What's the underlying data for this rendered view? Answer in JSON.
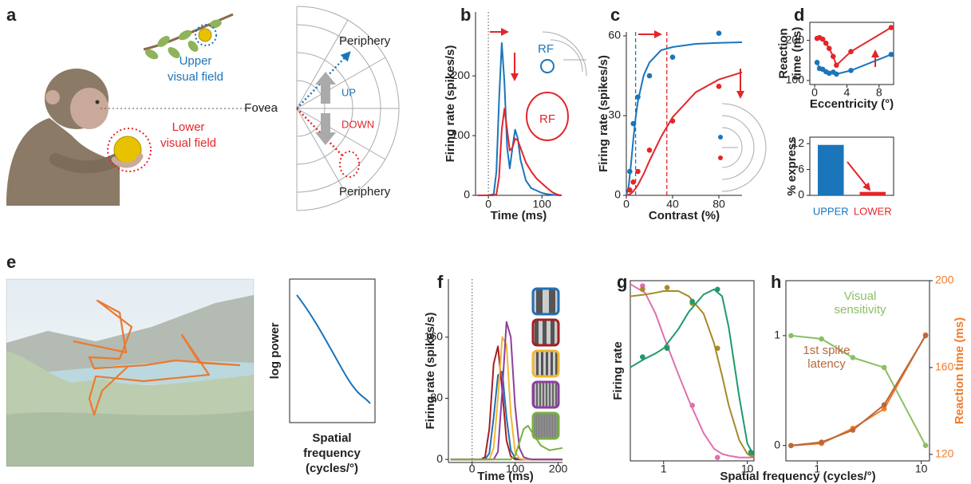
{
  "illustrations": {
    "a": {
      "panel": "a",
      "upper_label": [
        "Upper",
        "visual field"
      ],
      "lower_label": [
        "Lower",
        "visual field"
      ],
      "fovea": "Fovea",
      "periphery_top": "Periphery",
      "periphery_bottom": "Periphery",
      "up": "UP",
      "down": "DOWN"
    },
    "e": {
      "panel": "e",
      "power_y_label": "log power",
      "power_x_label": [
        "Spatial",
        "frequency",
        "(cycles/°)"
      ]
    }
  },
  "chart_data": [
    {
      "type": "line",
      "panel": "b",
      "x_label": "Time (ms)",
      "y_label": "Firing rate (spikes/s)",
      "frame": "L",
      "xlim": [
        -24,
        137
      ],
      "xticks": [
        0,
        100
      ],
      "ylim": [
        0,
        307
      ],
      "yticks": [
        0,
        100,
        200
      ],
      "vlines": [
        {
          "x": 0,
          "color": "#777777",
          "style": "dotted"
        }
      ],
      "x": [
        -20,
        0,
        10,
        15,
        20,
        25,
        30,
        35,
        40,
        45,
        50,
        55,
        60,
        70,
        80,
        90,
        100,
        110,
        120,
        130,
        137
      ],
      "series": [
        {
          "color": "#1b75bb",
          "values": [
            0,
            0,
            2,
            40,
            160,
            255,
            190,
            80,
            45,
            80,
            110,
            95,
            60,
            25,
            12,
            8,
            4,
            2,
            1,
            0,
            0
          ]
        },
        {
          "color": "#e3262a",
          "values": [
            0,
            0,
            0,
            2,
            30,
            110,
            145,
            110,
            75,
            80,
            95,
            92,
            80,
            55,
            40,
            28,
            20,
            12,
            5,
            1,
            0
          ]
        }
      ],
      "annotations": [
        {
          "lines": [
            "RF"
          ],
          "color": "#1b75bb"
        },
        {
          "lines": [
            "RF"
          ],
          "color": "#e3262a"
        }
      ]
    },
    {
      "type": "scatter",
      "panel": "c",
      "x_label": "Contrast (%)",
      "y_label": "Firing rate (spikes/s)",
      "frame": "L",
      "xlim": [
        0,
        100
      ],
      "xticks": [
        0,
        40,
        80
      ],
      "ylim": [
        0,
        61.5
      ],
      "yticks": [
        0,
        30,
        60
      ],
      "vlines": [
        {
          "x": 8,
          "color": "#1b75bb",
          "style": "dashed"
        },
        {
          "x": 35,
          "color": "#e3262a",
          "style": "dashed"
        }
      ],
      "x": [
        3,
        6,
        10,
        20,
        40,
        80
      ],
      "x_fit": [
        0,
        2,
        4,
        6,
        8,
        10,
        15,
        20,
        30,
        40,
        60,
        80,
        100
      ],
      "series": [
        {
          "color": "#1b75bb",
          "values": [
            9,
            27,
            37,
            45,
            52,
            61
          ],
          "fit": [
            0,
            3.4,
            11.6,
            20.9,
            29,
            35.4,
            45.2,
            50,
            54.6,
            55.8,
            57,
            57.4,
            57.6
          ]
        },
        {
          "color": "#e3262a",
          "values": [
            2,
            5,
            9,
            17,
            28,
            41
          ],
          "fit": [
            0,
            0.2,
            0.7,
            1.5,
            2.6,
            3.9,
            8.1,
            13,
            22,
            29.4,
            38.8,
            43.6,
            46.3
          ]
        }
      ]
    },
    {
      "type": "line",
      "panel": "d",
      "x_label": "Eccentricity (°)",
      "y_label": [
        "Reaction",
        "time (ms)"
      ],
      "frame": "box",
      "xlim": [
        -0.6,
        9.8
      ],
      "xticks": [
        0,
        4,
        8
      ],
      "ylim": [
        90,
        245
      ],
      "yticks": [
        100,
        200
      ],
      "x": [
        0.3,
        0.6,
        1,
        1.4,
        1.8,
        2.3,
        2.7,
        4.5,
        9.5
      ],
      "series": [
        {
          "color": "#e3262a",
          "markers": true,
          "values": [
            205,
            207,
            203,
            193,
            180,
            160,
            138,
            172,
            232
          ]
        },
        {
          "color": "#1b75bb",
          "markers": true,
          "values": [
            145,
            130,
            128,
            122,
            118,
            121,
            116,
            125,
            165
          ]
        }
      ]
    },
    {
      "type": "bar",
      "y_label": "% express",
      "frame": "box",
      "categories": [
        "UPPER",
        "LOWER"
      ],
      "values": [
        11.7,
        0.8
      ],
      "colors": [
        "#1b75bb",
        "#e3262a"
      ],
      "ylim": [
        0,
        13.5
      ],
      "yticks": [
        0,
        6,
        12
      ]
    },
    {
      "type": "line",
      "panel": "f",
      "x_label": "Time (ms)",
      "y_label": "Firing rate (spikes/s)",
      "frame": "L",
      "xlim": [
        -55,
        210
      ],
      "xticks": [
        0,
        100,
        200
      ],
      "ylim": [
        -4,
        236
      ],
      "yticks": [
        0,
        80,
        160
      ],
      "vlines": [
        {
          "x": 0,
          "color": "#777777",
          "style": "dotted"
        }
      ],
      "x": [
        -50,
        0,
        20,
        30,
        40,
        50,
        60,
        70,
        80,
        90,
        100,
        110,
        120,
        130,
        140,
        160,
        180,
        210
      ],
      "series": [
        {
          "color": "#1f6fb5",
          "values": [
            0,
            0,
            0,
            0,
            8,
            55,
            110,
            115,
            55,
            12,
            2,
            0,
            0,
            0,
            0,
            0,
            0,
            0
          ]
        },
        {
          "color": "#a51e22",
          "values": [
            0,
            0,
            0,
            3,
            40,
            125,
            148,
            90,
            25,
            4,
            0,
            0,
            0,
            0,
            0,
            0,
            0,
            0
          ]
        },
        {
          "color": "#f2b632",
          "values": [
            0,
            0,
            0,
            0,
            0,
            15,
            80,
            160,
            150,
            60,
            10,
            1,
            0,
            0,
            0,
            0,
            0,
            0
          ]
        },
        {
          "color": "#8e3fa0",
          "values": [
            0,
            0,
            0,
            0,
            0,
            0,
            10,
            90,
            180,
            160,
            70,
            15,
            3,
            1,
            0,
            0,
            0,
            0
          ]
        },
        {
          "color": "#76b041",
          "values": [
            0,
            0,
            0,
            0,
            0,
            0,
            0,
            0,
            0,
            0,
            5,
            22,
            40,
            44,
            35,
            18,
            12,
            15
          ]
        }
      ]
    },
    {
      "type": "scatter",
      "panel": "g",
      "x_label": "Spatial frequency (cycles/°)",
      "y_label": "Firing rate",
      "frame": "box",
      "x_scale": "log",
      "xlim": [
        0.4,
        12
      ],
      "xticks": [
        1,
        10
      ],
      "ylim": [
        -0.02,
        1.02
      ],
      "x": [
        0.56,
        1.1,
        2.2,
        4.4,
        11
      ],
      "x_fit": [
        0.4,
        0.6,
        0.8,
        1,
        1.5,
        2,
        3,
        4,
        5,
        6,
        8,
        10,
        12
      ],
      "series": [
        {
          "color": "#e06fb0",
          "values": [
            0.99,
            0.64,
            0.3,
            0,
            null
          ],
          "fit": [
            1,
            0.95,
            0.83,
            0.7,
            0.48,
            0.33,
            0.14,
            0.05,
            0.02,
            0.01,
            0,
            0,
            0
          ]
        },
        {
          "color": "#a58a2b",
          "values": [
            0.97,
            0.98,
            0.89,
            0.63,
            0.02
          ],
          "fit": [
            0.93,
            0.94,
            0.95,
            0.96,
            0.96,
            0.93,
            0.83,
            0.66,
            0.47,
            0.3,
            0.1,
            0.02,
            0
          ]
        },
        {
          "color": "#1e9a6a",
          "values": [
            0.58,
            0.63,
            0.9,
            0.97,
            0.03
          ],
          "fit": [
            0.52,
            0.57,
            0.6,
            0.63,
            0.74,
            0.84,
            0.94,
            0.97,
            0.93,
            0.75,
            0.35,
            0.08,
            0.01
          ]
        }
      ]
    },
    {
      "type": "line",
      "panel": "h",
      "frame": "box",
      "x_scale": "log",
      "xlim": [
        0.5,
        12
      ],
      "xticks": [
        1,
        10
      ],
      "ylim": [
        -0.14,
        1.5
      ],
      "yticks": [
        0,
        1
      ],
      "y2_label": "Reaction time (ms)",
      "y2_color": "#f07c2b",
      "y2lim": [
        117,
        200
      ],
      "y2ticks": [
        120,
        160,
        200
      ],
      "x": [
        0.56,
        1.1,
        2.2,
        4.4,
        11
      ],
      "series": [
        {
          "color": "#8cbf63",
          "markers": true,
          "values": [
            1,
            0.97,
            0.8,
            0.71,
            0
          ]
        },
        {
          "color": "#f07c2b",
          "markers": true,
          "axis": "y2",
          "values": [
            124,
            125,
            132,
            141,
            175
          ]
        },
        {
          "color": "#b8683c",
          "markers": true,
          "values": [
            0,
            0.03,
            0.14,
            0.37,
            1
          ]
        }
      ],
      "annotations": [
        {
          "lines": [
            "Visual",
            "sensitivity"
          ],
          "color": "#8cbf63"
        },
        {
          "lines": [
            "1st spike",
            "latency"
          ],
          "color": "#b8683c"
        }
      ]
    }
  ]
}
